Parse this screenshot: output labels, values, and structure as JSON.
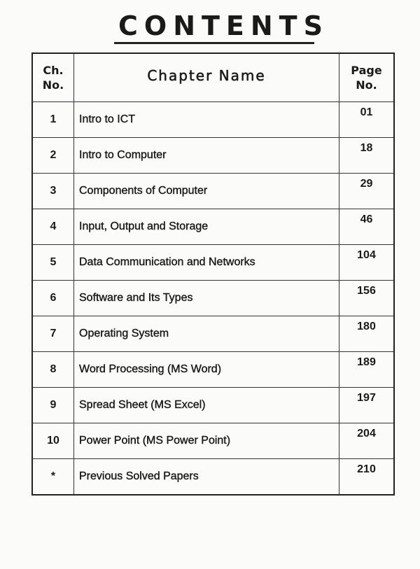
{
  "title": "CONTENTS",
  "table": {
    "headers": {
      "ch_no": [
        "Ch.",
        "No."
      ],
      "name": "Chapter Name",
      "page": [
        "Page",
        "No."
      ]
    },
    "rows": [
      {
        "ch": "1",
        "name": "Intro to ICT",
        "page": "01"
      },
      {
        "ch": "2",
        "name": "Intro to Computer",
        "page": "18"
      },
      {
        "ch": "3",
        "name": "Components of Computer",
        "page": "29"
      },
      {
        "ch": "4",
        "name": "Input, Output and Storage",
        "page": "46"
      },
      {
        "ch": "5",
        "name": "Data Communication and Networks",
        "page": "104"
      },
      {
        "ch": "6",
        "name": "Software and Its Types",
        "page": "156"
      },
      {
        "ch": "7",
        "name": "Operating System",
        "page": "180"
      },
      {
        "ch": "8",
        "name": "Word Processing (MS Word)",
        "page": "189"
      },
      {
        "ch": "9",
        "name": "Spread Sheet (MS Excel)",
        "page": "197"
      },
      {
        "ch": "10",
        "name": "Power Point (MS Power Point)",
        "page": "204"
      },
      {
        "ch": "*",
        "name": "Previous Solved Papers",
        "page": "210"
      }
    ]
  }
}
